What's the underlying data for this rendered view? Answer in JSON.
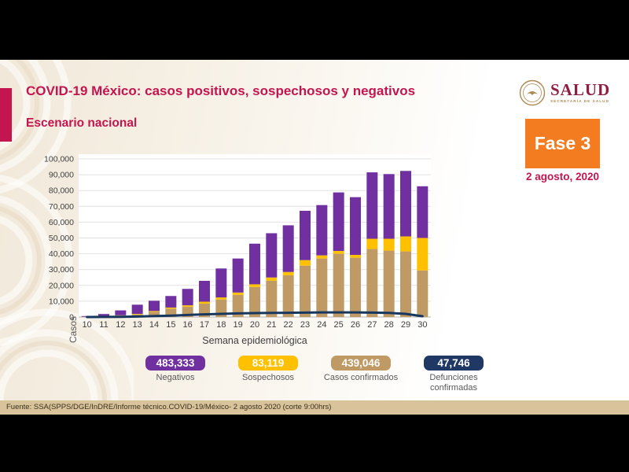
{
  "header": {
    "title": "COVID-19 México: casos positivos, sospechosos y negativos",
    "subtitle": "Escenario nacional"
  },
  "logo": {
    "name": "SALUD",
    "sub": "SECRETARÍA DE SALUD"
  },
  "phase": {
    "label": "Fase 3",
    "date": "2 agosto, 2020",
    "box_color": "#F47C20"
  },
  "chart_data": {
    "type": "bar",
    "stacked": true,
    "xlabel": "Semana epidemiológica",
    "ylabel": "Casos",
    "ylim": [
      0,
      100000
    ],
    "ytick_step": 10000,
    "yticks": [
      "0",
      "10,000",
      "20,000",
      "30,000",
      "40,000",
      "50,000",
      "60,000",
      "70,000",
      "80,000",
      "90,000",
      "100,000"
    ],
    "grid": "horizontal",
    "categories": [
      10,
      11,
      12,
      13,
      14,
      15,
      16,
      17,
      18,
      19,
      20,
      21,
      22,
      23,
      24,
      25,
      26,
      27,
      28,
      29,
      30
    ],
    "series": [
      {
        "name": "Casos confirmados",
        "color": "#BF9A64",
        "values": [
          200,
          400,
          900,
          1600,
          3300,
          5300,
          6500,
          8500,
          11100,
          14000,
          19000,
          23000,
          26400,
          32500,
          37000,
          40000,
          37500,
          43000,
          42000,
          41500,
          29500
        ]
      },
      {
        "name": "Sospechosos",
        "color": "#FFC000",
        "values": [
          0,
          100,
          200,
          400,
          500,
          700,
          900,
          1200,
          1300,
          1500,
          1700,
          2000,
          2100,
          3500,
          2000,
          1800,
          1800,
          6500,
          7500,
          9500,
          20500
        ]
      },
      {
        "name": "Negativos",
        "color": "#7030A0",
        "values": [
          400,
          1400,
          3100,
          5800,
          6500,
          7300,
          10400,
          13200,
          18300,
          21500,
          25700,
          28000,
          29500,
          31200,
          31800,
          37000,
          36500,
          42000,
          40900,
          41400,
          32700
        ]
      }
    ],
    "line_series": {
      "name": "Defunciones confirmadas",
      "color": "#17375E",
      "values": [
        0,
        50,
        150,
        300,
        600,
        900,
        1300,
        1700,
        2000,
        2300,
        2500,
        2600,
        2700,
        2800,
        2900,
        2900,
        2900,
        2800,
        2600,
        2000,
        500
      ]
    }
  },
  "legend": {
    "items": [
      {
        "value": "483,333",
        "label": "Negativos",
        "color": "#7030A0"
      },
      {
        "value": "83,119",
        "label": "Sospechosos",
        "color": "#FFC000"
      },
      {
        "value": "439,046",
        "label": "Casos confirmados",
        "color": "#BF9A64"
      },
      {
        "value": "47,746",
        "label": "Defunciones confirmadas",
        "color": "#1F3864"
      }
    ]
  },
  "footer": {
    "source": "Fuente: SSA(SPPS/DGE/InDRE/Informe técnico.COVID-19/México- 2 agosto 2020 (corte 9:00hrs)"
  }
}
